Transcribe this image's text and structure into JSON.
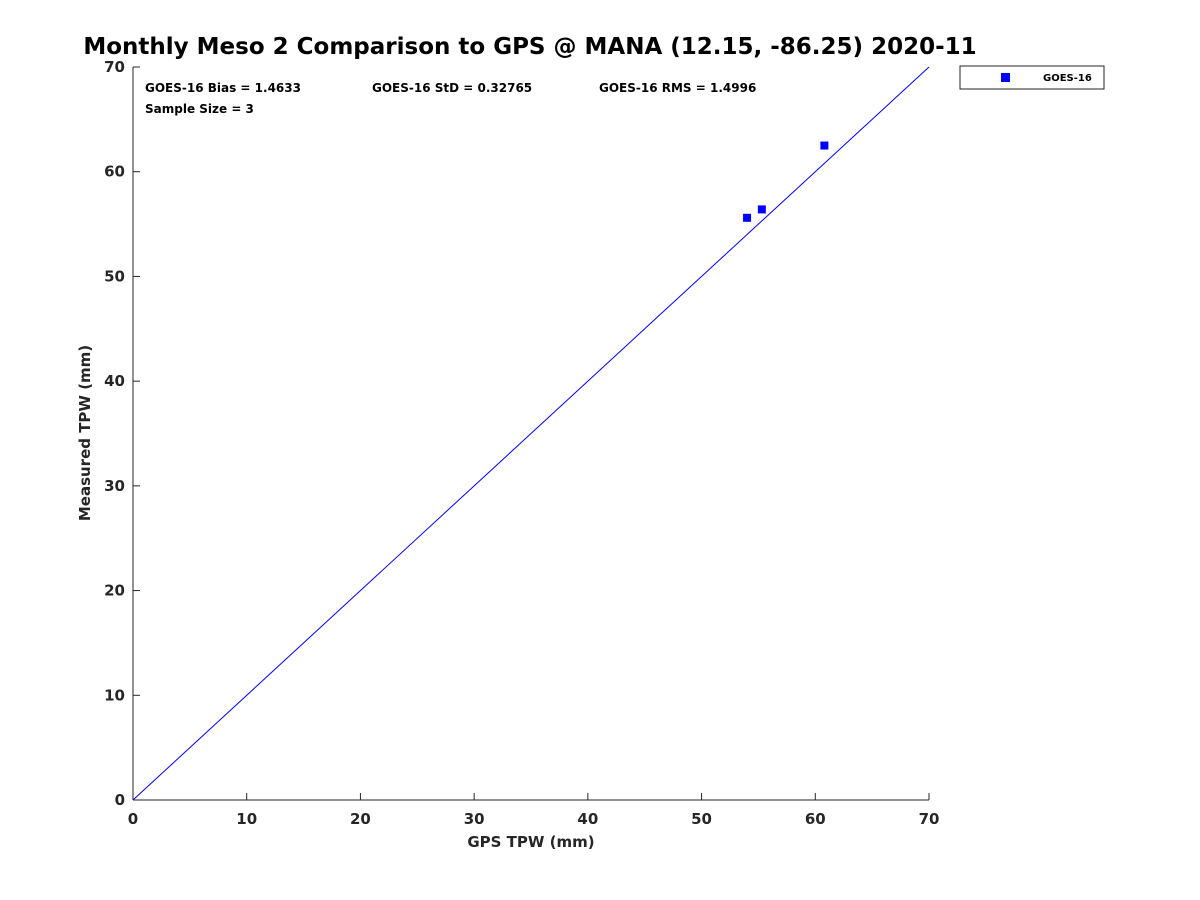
{
  "chart_data": {
    "type": "scatter",
    "title": "Monthly Meso 2 Comparison to GPS @ MANA (12.15, -86.25) 2020-11",
    "xlabel": "GPS TPW (mm)",
    "ylabel": "Measured TPW (mm)",
    "xlim": [
      0,
      70
    ],
    "ylim": [
      0,
      70
    ],
    "xticks": [
      0,
      10,
      20,
      30,
      40,
      50,
      60,
      70
    ],
    "yticks": [
      0,
      10,
      20,
      30,
      40,
      50,
      60,
      70
    ],
    "grid": false,
    "legend_position": "outside-top-right",
    "reference_line": {
      "x": [
        0,
        70
      ],
      "y": [
        0,
        70
      ],
      "color": "#0000ff"
    },
    "series": [
      {
        "name": "GOES-16",
        "color": "#0000ff",
        "marker": "square",
        "x": [
          54.0,
          55.3,
          60.8
        ],
        "y": [
          55.6,
          56.4,
          62.5
        ]
      }
    ],
    "annotations": {
      "bias": "GOES-16 Bias = 1.4633",
      "std": "GOES-16 StD = 0.32765",
      "rms": "GOES-16 RMS = 1.4996",
      "sample_size": "Sample Size = 3"
    }
  }
}
